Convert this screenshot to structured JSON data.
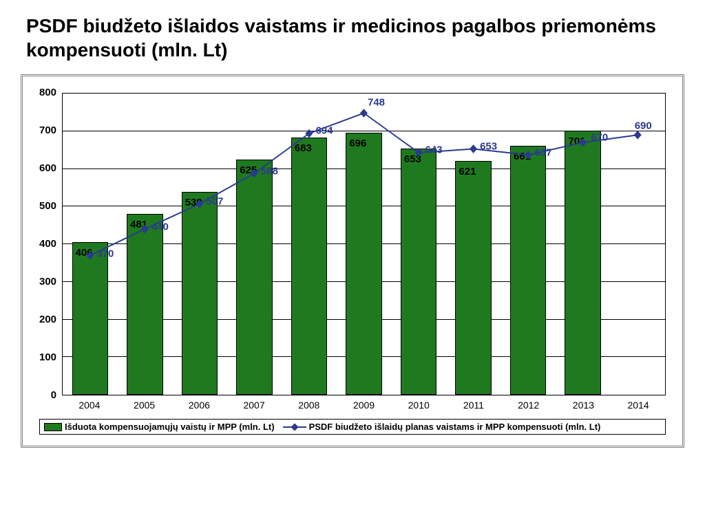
{
  "title": "PSDF biudžeto išlaidos vaistams ir medicinos pagalbos priemonėms kompensuoti (mln. Lt)",
  "chart": {
    "type": "bar+line",
    "background_color": "#ffffff",
    "grid_color": "#000000",
    "frame_color": "#808080",
    "ylim": [
      0,
      800
    ],
    "ytick_step": 100,
    "yticks": [
      0,
      100,
      200,
      300,
      400,
      500,
      600,
      700,
      800
    ],
    "categories": [
      "2004",
      "2005",
      "2006",
      "2007",
      "2008",
      "2009",
      "2010",
      "2011",
      "2012",
      "2013",
      "2014"
    ],
    "bar_series": {
      "label": "Išduota kompensuojamųjų vaistų ir MPP (mln. Lt)",
      "color": "#1f7a1f",
      "border_color": "#000000",
      "values": [
        406,
        481,
        539,
        625,
        683,
        696,
        653,
        621,
        661,
        701,
        null
      ],
      "bar_width": 0.66,
      "label_fontsize": 15
    },
    "line_series": {
      "label": "PSDF biudžeto išlaidų planas vaistams ir MPP kompensuoti (mln. Lt)",
      "color": "#2a3a8f",
      "marker": "diamond",
      "marker_size": 9,
      "line_width": 2,
      "values": [
        370,
        440,
        507,
        588,
        694,
        748,
        643,
        653,
        637,
        670,
        690
      ],
      "label_fontsize": 15
    },
    "axis_fontsize": 15,
    "xaxis_fontsize": 14,
    "legend_fontsize": 13,
    "title_fontsize": 28
  }
}
